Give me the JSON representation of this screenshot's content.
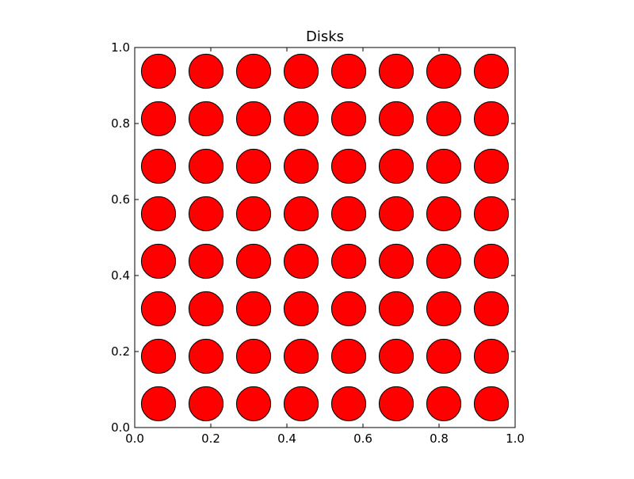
{
  "chart_data": {
    "type": "scatter",
    "title": "Disks",
    "xlabel": "",
    "ylabel": "",
    "xlim": [
      0.0,
      1.0
    ],
    "ylim": [
      0.0,
      1.0
    ],
    "x_ticks": [
      "0.0",
      "0.2",
      "0.4",
      "0.6",
      "0.8",
      "1.0"
    ],
    "y_ticks": [
      "0.0",
      "0.2",
      "0.4",
      "0.6",
      "0.8",
      "1.0"
    ],
    "grid": false,
    "marker": "disk",
    "disk_radius": 0.045,
    "x": [
      0.0625,
      0.1875,
      0.3125,
      0.4375,
      0.5625,
      0.6875,
      0.8125,
      0.9375
    ],
    "y": [
      0.0625,
      0.1875,
      0.3125,
      0.4375,
      0.5625,
      0.6875,
      0.8125,
      0.9375
    ],
    "fill_color": "#ff0000",
    "edge_color": "#000000"
  }
}
